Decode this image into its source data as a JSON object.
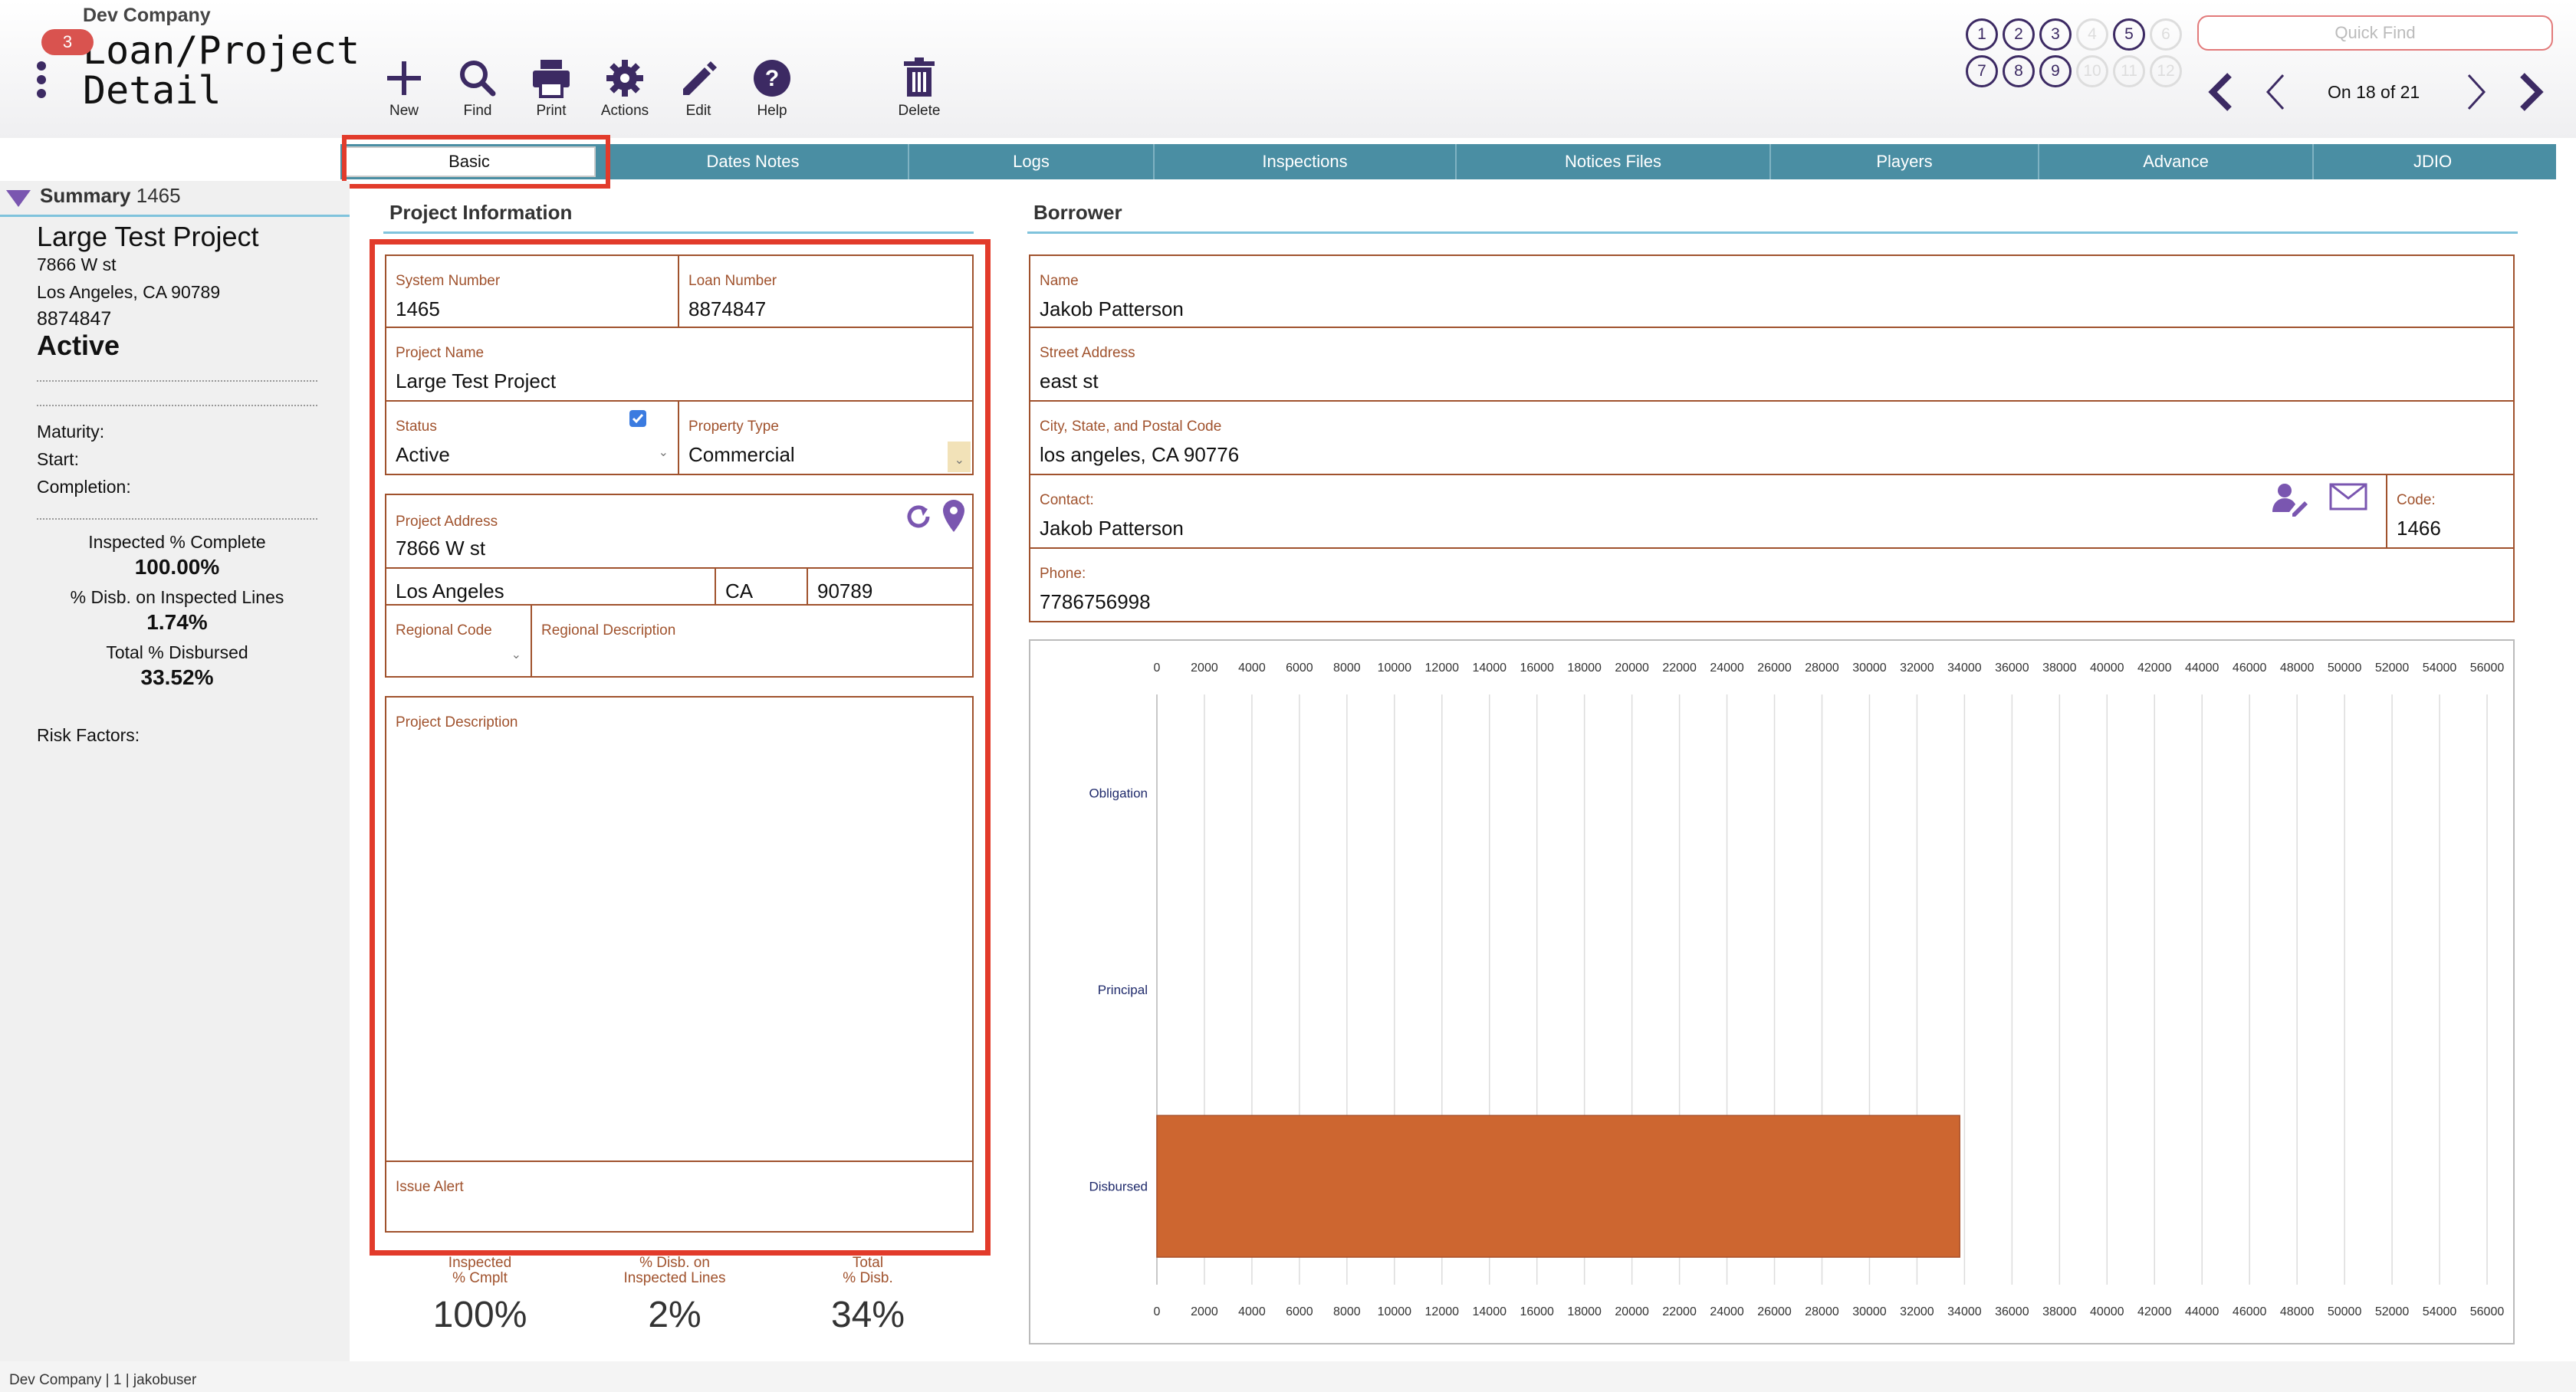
{
  "header": {
    "company": "Dev Company",
    "badge_count": "3",
    "title_line1": "Loan/Project",
    "title_line2": "Detail",
    "toolbar": {
      "new": "New",
      "find": "Find",
      "print": "Print",
      "actions": "Actions",
      "edit": "Edit",
      "help": "Help",
      "delete": "Delete"
    },
    "quick_find_placeholder": "Quick Find",
    "record_info": "On 18 of 21",
    "pages_row1": [
      "1",
      "2",
      "3",
      "4",
      "5",
      "6"
    ],
    "pages_row2": [
      "7",
      "8",
      "9",
      "10",
      "11",
      "12"
    ]
  },
  "tabs": [
    "Basic",
    "Dates Notes",
    "Logs",
    "Inspections",
    "Notices Files",
    "Players",
    "Advance",
    "JDIO"
  ],
  "sidebar": {
    "summary_label": "Summary",
    "summary_number": "1465",
    "project_name": "Large Test Project",
    "address1": "7866 W st",
    "address2": "Los Angeles, CA  90789",
    "loan_number": "8874847",
    "status": "Active",
    "maturity": "Maturity:",
    "start": "Start:",
    "completion": "Completion:",
    "inspected_label": "Inspected % Complete",
    "inspected_value": "100.00%",
    "disb_inspected_label": "% Disb. on Inspected Lines",
    "disb_inspected_value": "1.74%",
    "total_disb_label": "Total % Disbursed",
    "total_disb_value": "33.52%",
    "risk_factors": "Risk Factors:"
  },
  "project_info": {
    "heading": "Project Information",
    "system_number_label": "System Number",
    "system_number": "1465",
    "loan_number_label": "Loan Number",
    "loan_number": "8874847",
    "project_name_label": "Project Name",
    "project_name": "Large Test Project",
    "status_label": "Status",
    "status": "Active",
    "property_type_label": "Property Type",
    "property_type": "Commercial",
    "project_address_label": "Project Address",
    "street": "7866 W st",
    "city": "Los Angeles",
    "state": "CA",
    "zip": "90789",
    "regional_code_label": "Regional Code",
    "regional_desc_label": "Regional Description",
    "project_desc_label": "Project Description",
    "issue_alert_label": "Issue Alert"
  },
  "stats": [
    {
      "label1": "Inspected",
      "label2": "% Cmplt",
      "value": "100%"
    },
    {
      "label1": "% Disb. on",
      "label2": "Inspected Lines",
      "value": "2%"
    },
    {
      "label1": "Total",
      "label2": "% Disb.",
      "value": "34%"
    }
  ],
  "borrower": {
    "heading": "Borrower",
    "name_label": "Name",
    "name": "Jakob Patterson",
    "street_label": "Street Address",
    "street": "east st",
    "city_label": "City, State, and Postal Code",
    "city": "los angeles, CA  90776",
    "contact_label": "Contact:",
    "contact": "Jakob Patterson",
    "code_label": "Code:",
    "code": "1466",
    "phone_label": "Phone:",
    "phone": "7786756998"
  },
  "colors": {
    "accent_purple": "#3c2a63",
    "tab_teal": "#4a8ea3",
    "field_border": "#a0522d",
    "highlight_red": "#e23b2b",
    "bar_orange": "#cd6630"
  },
  "chart_data": {
    "type": "bar",
    "orientation": "horizontal",
    "categories": [
      "Obligation",
      "Principal",
      "Disbursed"
    ],
    "values": [
      0,
      0,
      33800
    ],
    "xlim": [
      0,
      56000
    ],
    "xticks": [
      0,
      2000,
      4000,
      6000,
      8000,
      10000,
      12000,
      14000,
      16000,
      18000,
      20000,
      22000,
      24000,
      26000,
      28000,
      30000,
      32000,
      34000,
      36000,
      38000,
      40000,
      42000,
      44000,
      46000,
      48000,
      50000,
      52000,
      54000,
      56000
    ],
    "grid": true,
    "xlabel": "",
    "ylabel": "",
    "title": ""
  }
}
